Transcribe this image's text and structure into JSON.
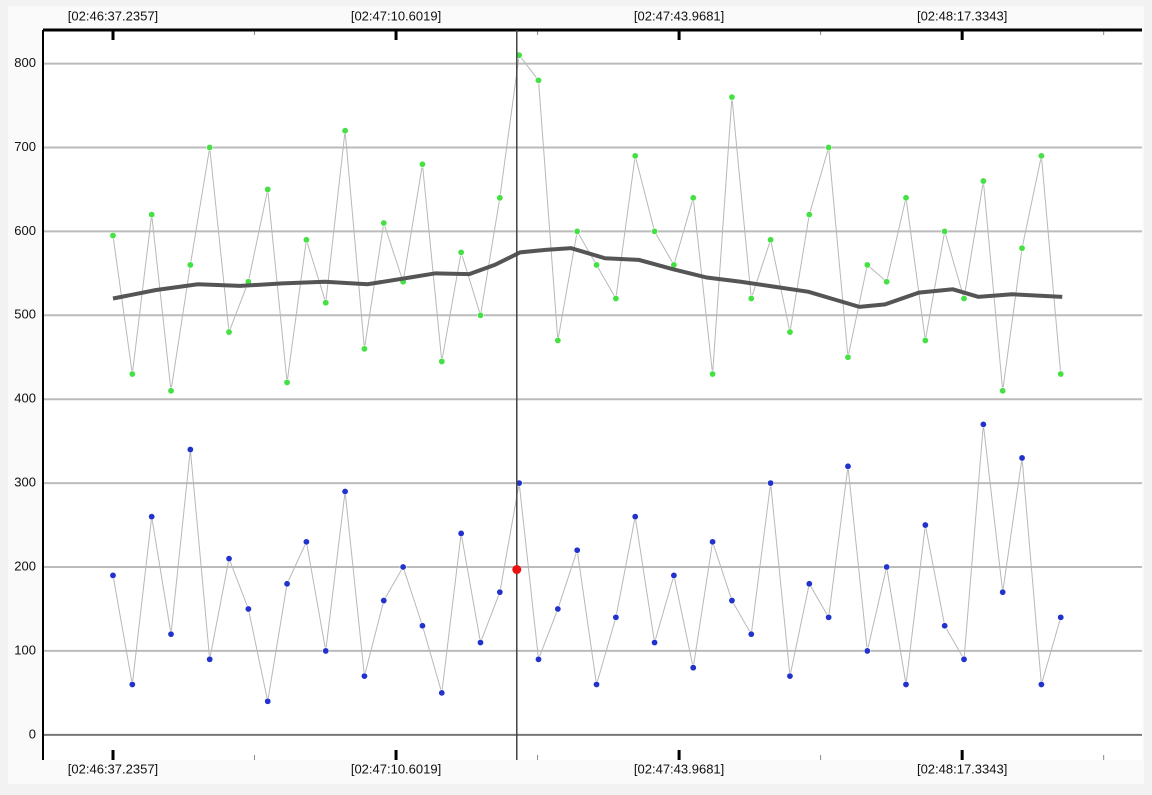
{
  "chart_data": {
    "type": "scatter",
    "xlim": [
      -8.25,
      121.3
    ],
    "xticks": [
      {
        "value": 0,
        "label": "[02:46:37.2357]"
      },
      {
        "value": 33.3662,
        "label": "[02:47:10.6019]"
      },
      {
        "value": 66.7324,
        "label": "[02:47:43.9681]"
      },
      {
        "value": 100.0986,
        "label": "[02:48:17.3343]"
      }
    ],
    "x_minor_ticks": [
      16.6831,
      50.0493,
      83.4155,
      116.7817
    ],
    "ylim": [
      -30,
      840
    ],
    "yticks": [
      0,
      100,
      200,
      300,
      400,
      500,
      600,
      700,
      800
    ],
    "grid": true,
    "x": [
      0,
      2.28,
      4.56,
      6.84,
      9.12,
      11.4,
      13.68,
      15.96,
      18.24,
      20.52,
      22.8,
      25.08,
      27.36,
      29.64,
      31.92,
      34.2,
      36.48,
      38.76,
      41.04,
      43.32,
      45.6,
      47.88,
      50.16,
      52.44,
      54.72,
      57,
      59.28,
      61.56,
      63.84,
      66.12,
      68.4,
      70.68,
      72.96,
      75.24,
      77.52,
      79.8,
      82.08,
      84.36,
      86.64,
      88.92,
      91.2,
      93.48,
      95.76,
      98.04,
      100.32,
      102.6,
      104.88,
      107.16,
      109.44,
      111.72
    ],
    "series": [
      {
        "color": "#44e044",
        "values": [
          595,
          430,
          620,
          410,
          560,
          700,
          480,
          540,
          650,
          420,
          590,
          515,
          720,
          460,
          610,
          540,
          680,
          445,
          575,
          500,
          640,
          810,
          780,
          470,
          600,
          560,
          520,
          690,
          600,
          560,
          640,
          430,
          760,
          520,
          590,
          480,
          620,
          700,
          450,
          560,
          540,
          640,
          470,
          600,
          520,
          660,
          410,
          580,
          690,
          430
        ]
      },
      {
        "color": "#2233cc",
        "values": [
          190,
          60,
          260,
          120,
          340,
          90,
          210,
          150,
          40,
          180,
          230,
          100,
          290,
          70,
          160,
          200,
          130,
          50,
          240,
          110,
          170,
          300,
          90,
          150,
          220,
          60,
          140,
          260,
          110,
          190,
          80,
          230,
          160,
          120,
          300,
          70,
          180,
          140,
          320,
          100,
          200,
          60,
          250,
          130,
          90,
          370,
          170,
          330,
          60,
          140
        ]
      }
    ],
    "moving_average": {
      "color": "#555555",
      "x": [
        0,
        5,
        10,
        15,
        20,
        25,
        30,
        35,
        38,
        42,
        45,
        48,
        51,
        54,
        58,
        62,
        66,
        70,
        74,
        78,
        82,
        86,
        88,
        91,
        95,
        99,
        102,
        106,
        111.9
      ],
      "values": [
        520,
        530,
        537,
        535,
        538,
        540,
        537,
        545,
        550,
        549,
        560,
        575,
        578,
        580,
        568,
        566,
        555,
        545,
        540,
        534,
        528,
        516,
        510,
        513,
        527,
        531,
        522,
        525,
        522
      ]
    },
    "cursor_x": 47.6,
    "highlight": {
      "x": 47.6,
      "y": 197,
      "color": "#ee1111"
    }
  }
}
